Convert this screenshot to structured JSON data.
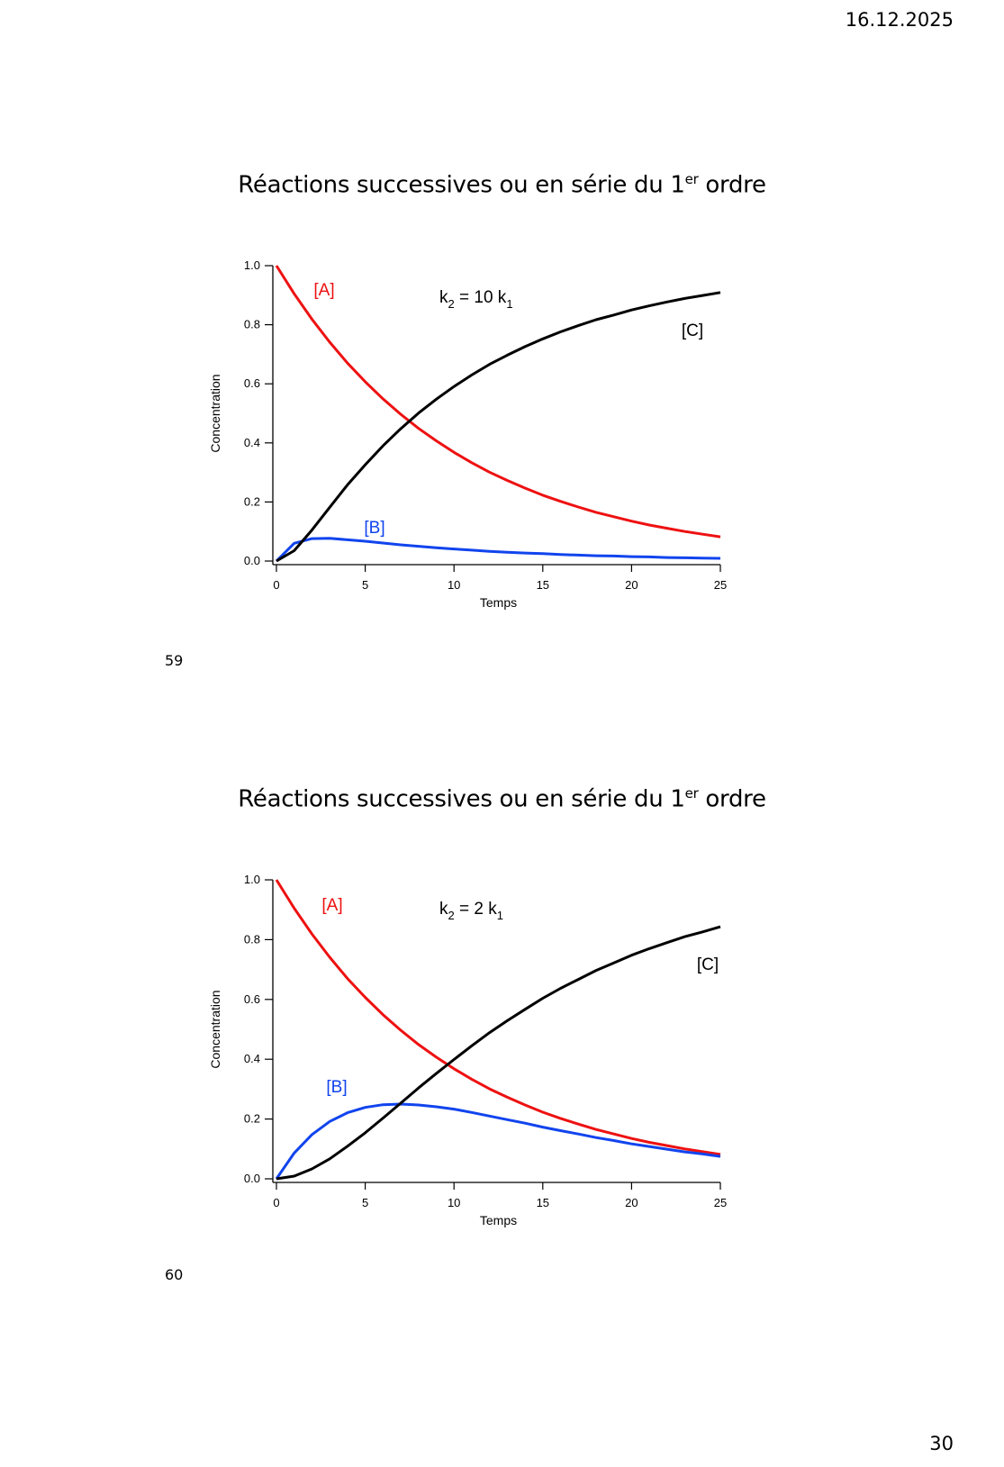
{
  "header": {
    "date": "16.12.2025"
  },
  "footer": {
    "page_number": "30"
  },
  "slides": [
    {
      "number": "59",
      "title_main": "Réactions successives ou en série du 1",
      "title_sup": "er",
      "title_end": " ordre",
      "annotation": {
        "k2": "k",
        "k2_sub": "2",
        "mid": " = 10 k",
        "k1_sub": "1"
      },
      "labels": {
        "A": "[A]",
        "B": "[B]",
        "C": "[C]"
      }
    },
    {
      "number": "60",
      "title_main": "Réactions successives ou en série du 1",
      "title_sup": "er",
      "title_end": " ordre",
      "annotation": {
        "k2": "k",
        "k2_sub": "2",
        "mid": " = 2 k",
        "k1_sub": "1"
      },
      "labels": {
        "A": "[A]",
        "B": "[B]",
        "C": "[C]"
      }
    }
  ],
  "colors": {
    "A": "#ee1111",
    "B": "#1144ee",
    "C": "#000000"
  },
  "chart_data": [
    {
      "type": "line",
      "title": "Réactions successives ou en série du 1er ordre",
      "annotation": "k2 = 10 k1",
      "xlabel": "Temps",
      "ylabel": "Concentration",
      "xlim": [
        0,
        25
      ],
      "ylim": [
        0,
        1.0
      ],
      "xticks": [
        "0",
        "5",
        "10",
        "15",
        "20",
        "25"
      ],
      "yticks": [
        "0.0",
        "0.2",
        "0.4",
        "0.6",
        "0.8",
        "1.0"
      ],
      "grid": false,
      "x": [
        0,
        1,
        2,
        3,
        4,
        5,
        6,
        7,
        8,
        9,
        10,
        11,
        12,
        13,
        14,
        15,
        16,
        17,
        18,
        19,
        20,
        21,
        22,
        23,
        24,
        25
      ],
      "series": [
        {
          "name": "[A]",
          "color": "#ee1111",
          "values": [
            1.0,
            0.905,
            0.819,
            0.741,
            0.67,
            0.607,
            0.549,
            0.497,
            0.449,
            0.407,
            0.368,
            0.333,
            0.301,
            0.273,
            0.247,
            0.223,
            0.202,
            0.183,
            0.165,
            0.15,
            0.135,
            0.122,
            0.111,
            0.1,
            0.091,
            0.082
          ]
        },
        {
          "name": "[B]",
          "color": "#1144ee",
          "values": [
            0.0,
            0.06,
            0.076,
            0.077,
            0.072,
            0.067,
            0.061,
            0.055,
            0.05,
            0.045,
            0.041,
            0.037,
            0.033,
            0.03,
            0.027,
            0.025,
            0.022,
            0.02,
            0.018,
            0.017,
            0.015,
            0.014,
            0.012,
            0.011,
            0.01,
            0.009
          ]
        },
        {
          "name": "[C]",
          "color": "#000000",
          "values": [
            0.0,
            0.035,
            0.105,
            0.182,
            0.258,
            0.326,
            0.39,
            0.448,
            0.501,
            0.548,
            0.591,
            0.63,
            0.666,
            0.697,
            0.726,
            0.752,
            0.776,
            0.797,
            0.817,
            0.833,
            0.85,
            0.864,
            0.877,
            0.889,
            0.899,
            0.909
          ]
        }
      ]
    },
    {
      "type": "line",
      "title": "Réactions successives ou en série du 1er ordre",
      "annotation": "k2 = 2 k1",
      "xlabel": "Temps",
      "ylabel": "Concentration",
      "xlim": [
        0,
        25
      ],
      "ylim": [
        0,
        1.0
      ],
      "xticks": [
        "0",
        "5",
        "10",
        "15",
        "20",
        "25"
      ],
      "yticks": [
        "0.0",
        "0.2",
        "0.4",
        "0.6",
        "0.8",
        "1.0"
      ],
      "grid": false,
      "x": [
        0,
        1,
        2,
        3,
        4,
        5,
        6,
        7,
        8,
        9,
        10,
        11,
        12,
        13,
        14,
        15,
        16,
        17,
        18,
        19,
        20,
        21,
        22,
        23,
        24,
        25
      ],
      "series": [
        {
          "name": "[A]",
          "color": "#ee1111",
          "values": [
            1.0,
            0.905,
            0.819,
            0.741,
            0.67,
            0.607,
            0.549,
            0.497,
            0.449,
            0.407,
            0.368,
            0.333,
            0.301,
            0.273,
            0.247,
            0.223,
            0.202,
            0.183,
            0.165,
            0.15,
            0.135,
            0.122,
            0.111,
            0.1,
            0.091,
            0.082
          ]
        },
        {
          "name": "[B]",
          "color": "#1144ee",
          "values": [
            0.0,
            0.086,
            0.148,
            0.192,
            0.221,
            0.239,
            0.248,
            0.25,
            0.247,
            0.241,
            0.233,
            0.222,
            0.21,
            0.198,
            0.186,
            0.173,
            0.161,
            0.15,
            0.138,
            0.128,
            0.117,
            0.108,
            0.099,
            0.09,
            0.083,
            0.075
          ]
        },
        {
          "name": "[C]",
          "color": "#000000",
          "values": [
            0.0,
            0.009,
            0.033,
            0.067,
            0.109,
            0.154,
            0.203,
            0.253,
            0.304,
            0.352,
            0.399,
            0.445,
            0.489,
            0.529,
            0.567,
            0.604,
            0.637,
            0.667,
            0.697,
            0.722,
            0.748,
            0.77,
            0.79,
            0.81,
            0.826,
            0.843
          ]
        }
      ]
    }
  ]
}
